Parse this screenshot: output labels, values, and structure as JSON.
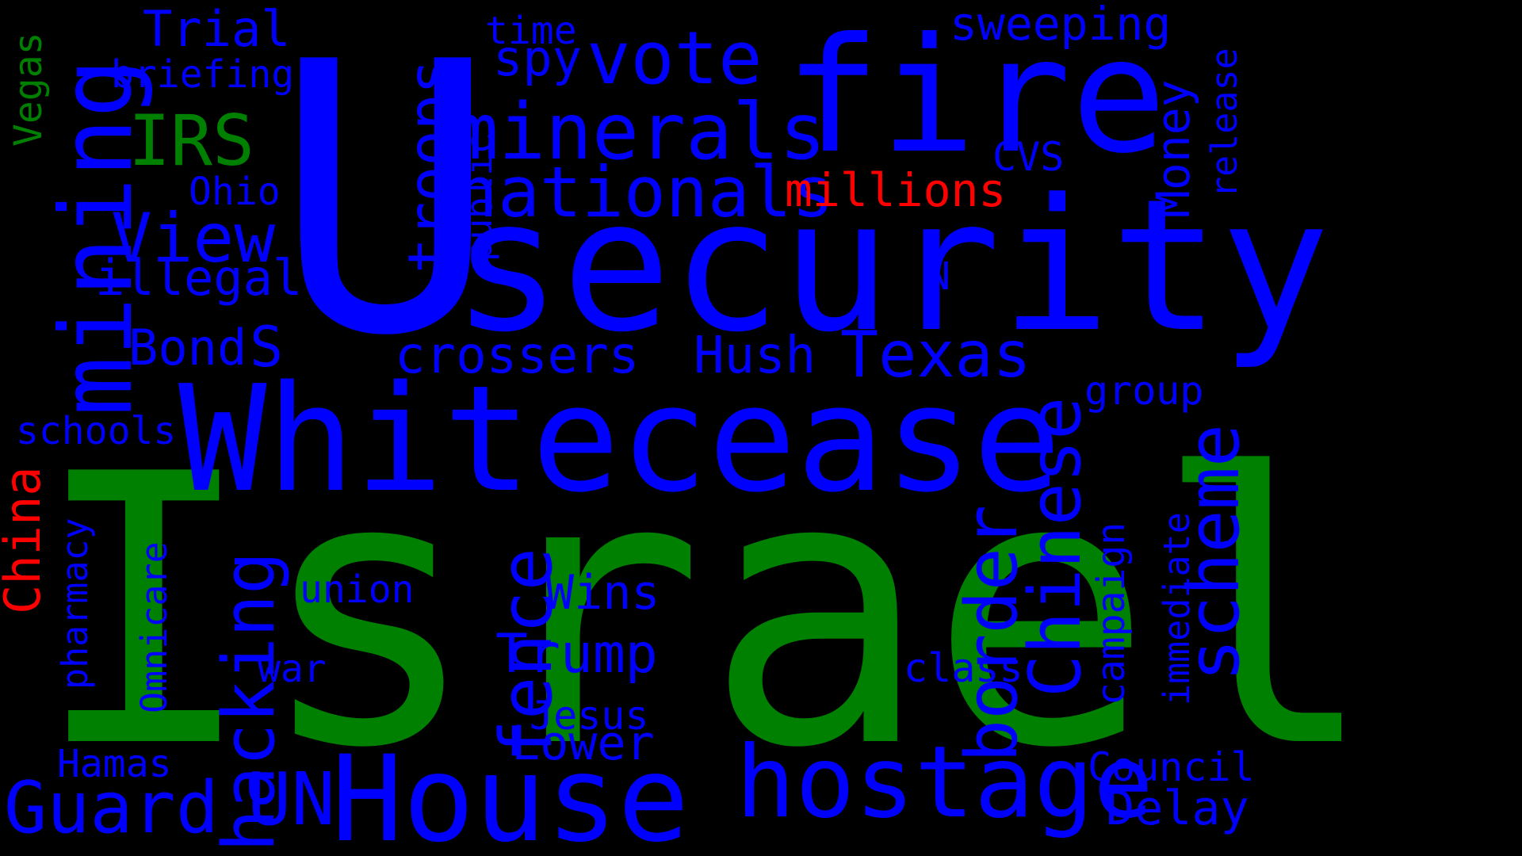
{
  "colors": {
    "background": "#000000",
    "blue": "#0000ff",
    "green": "#008000",
    "red": "#ff0000"
  },
  "words": [
    {
      "text": "Israel",
      "color": "green"
    },
    {
      "text": "U",
      "color": "blue"
    },
    {
      "text": "security",
      "color": "blue"
    },
    {
      "text": "fire",
      "color": "blue"
    },
    {
      "text": "Whitecease",
      "color": "blue"
    },
    {
      "text": "House",
      "color": "blue"
    },
    {
      "text": "hostage",
      "color": "blue"
    },
    {
      "text": "mining",
      "color": "blue"
    },
    {
      "text": "minerals",
      "color": "blue"
    },
    {
      "text": "nationals",
      "color": "blue"
    },
    {
      "text": "vote",
      "color": "blue"
    },
    {
      "text": "troops",
      "color": "blue"
    },
    {
      "text": "IRS",
      "color": "green"
    },
    {
      "text": "View",
      "color": "blue"
    },
    {
      "text": "Trial",
      "color": "blue"
    },
    {
      "text": "briefing",
      "color": "blue"
    },
    {
      "text": "Vegas",
      "color": "green"
    },
    {
      "text": "Ohio",
      "color": "blue"
    },
    {
      "text": "illegal",
      "color": "blue"
    },
    {
      "text": "Bond",
      "color": "blue"
    },
    {
      "text": "S",
      "color": "blue"
    },
    {
      "text": "schools",
      "color": "blue"
    },
    {
      "text": "China",
      "color": "red"
    },
    {
      "text": "pharmacy",
      "color": "blue"
    },
    {
      "text": "Omnicare",
      "color": "blue"
    },
    {
      "text": "hacking",
      "color": "blue"
    },
    {
      "text": "union",
      "color": "blue"
    },
    {
      "text": "war",
      "color": "blue"
    },
    {
      "text": "Hamas",
      "color": "blue"
    },
    {
      "text": "Guard",
      "color": "blue"
    },
    {
      "text": "UN",
      "color": "blue"
    },
    {
      "text": "fence",
      "color": "blue"
    },
    {
      "text": "Wins",
      "color": "blue"
    },
    {
      "text": "Trump",
      "color": "blue"
    },
    {
      "text": "Jesus",
      "color": "blue"
    },
    {
      "text": "Lower",
      "color": "blue"
    },
    {
      "text": "border",
      "color": "blue"
    },
    {
      "text": "crossers",
      "color": "blue"
    },
    {
      "text": "Hush",
      "color": "blue"
    },
    {
      "text": "Texas",
      "color": "blue"
    },
    {
      "text": "public",
      "color": "blue"
    },
    {
      "text": "spy",
      "color": "blue"
    },
    {
      "text": "time",
      "color": "blue"
    },
    {
      "text": "millions",
      "color": "red"
    },
    {
      "text": "N",
      "color": "blue"
    },
    {
      "text": "sweeping",
      "color": "blue"
    },
    {
      "text": "CVS",
      "color": "blue"
    },
    {
      "text": "Money",
      "color": "blue"
    },
    {
      "text": "release",
      "color": "blue"
    },
    {
      "text": "Chinese",
      "color": "blue"
    },
    {
      "text": "scheme",
      "color": "blue"
    },
    {
      "text": "group",
      "color": "blue"
    },
    {
      "text": "campaign",
      "color": "blue"
    },
    {
      "text": "immediate",
      "color": "blue"
    },
    {
      "text": "class",
      "color": "blue"
    },
    {
      "text": "Council",
      "color": "blue"
    },
    {
      "text": "Delay",
      "color": "blue"
    }
  ]
}
